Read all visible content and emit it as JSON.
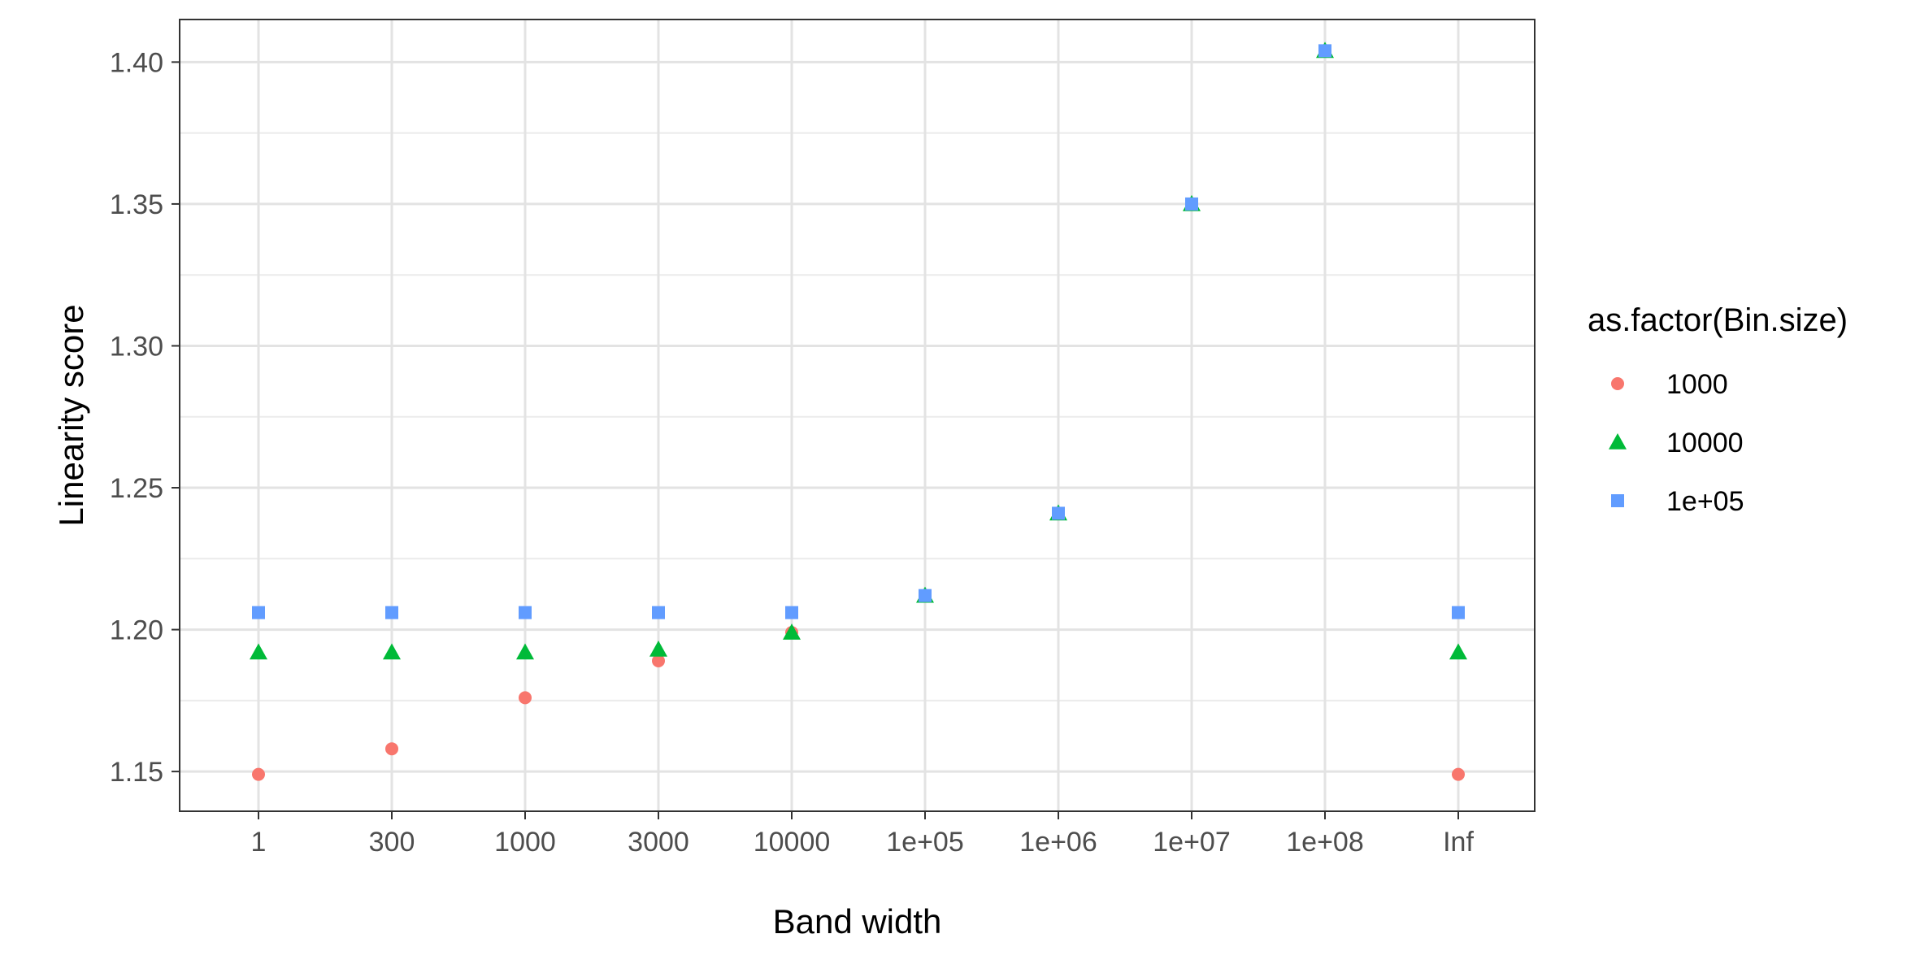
{
  "chart_data": {
    "type": "scatter",
    "xlabel": "Band width",
    "ylabel": "Linearity score",
    "categories": [
      "1",
      "300",
      "1000",
      "3000",
      "10000",
      "1e+05",
      "1e+06",
      "1e+07",
      "1e+08",
      "Inf"
    ],
    "y_ticks": [
      "1.15",
      "1.20",
      "1.25",
      "1.30",
      "1.35",
      "1.40"
    ],
    "ylim": [
      1.136,
      1.415
    ],
    "grid": true,
    "legend": {
      "title": "as.factor(Bin.size)",
      "position": "right"
    },
    "series": [
      {
        "name": "1000",
        "shape": "circle",
        "color": "#F8766D",
        "values": [
          1.149,
          1.158,
          1.176,
          1.189,
          1.199,
          1.212,
          1.241,
          1.35,
          1.404,
          1.149
        ]
      },
      {
        "name": "10000",
        "shape": "triangle",
        "color": "#00BA38",
        "values": [
          1.192,
          1.192,
          1.192,
          1.193,
          1.199,
          1.212,
          1.241,
          1.35,
          1.404,
          1.192
        ]
      },
      {
        "name": "1e+05",
        "shape": "square",
        "color": "#619CFF",
        "values": [
          1.206,
          1.206,
          1.206,
          1.206,
          1.206,
          1.212,
          1.241,
          1.35,
          1.404,
          1.206
        ]
      }
    ]
  }
}
